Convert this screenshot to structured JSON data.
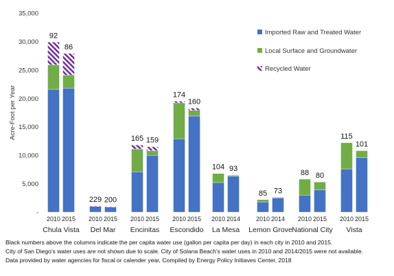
{
  "chart_data": {
    "type": "bar",
    "stacked": true,
    "ylabel": "Acre-Foot per Year",
    "ylim": [
      0,
      35000
    ],
    "ytick_labels": [
      "-",
      "5,000",
      "10,000",
      "15,000",
      "20,000",
      "25,000",
      "30,000",
      "35,000"
    ],
    "cities": [
      "Chula Vista",
      "Del Mar",
      "Encinitas",
      "Escondido",
      "La Mesa",
      "Lemon Grove",
      "National City",
      "Vista"
    ],
    "years": [
      [
        "2010",
        "2015"
      ],
      [
        "2010",
        "2015"
      ],
      [
        "2010",
        "2015"
      ],
      [
        "2010",
        "2015"
      ],
      [
        "2010",
        "2014"
      ],
      [
        "2010",
        "2014"
      ],
      [
        "2010",
        "2015"
      ],
      [
        "2010",
        "2015"
      ]
    ],
    "per_capita_labels": [
      [
        "92",
        "86"
      ],
      [
        "229",
        "200"
      ],
      [
        "165",
        "159"
      ],
      [
        "174",
        "160"
      ],
      [
        "104",
        "93"
      ],
      [
        "85",
        "73"
      ],
      [
        "88",
        "80"
      ],
      [
        "115",
        "101"
      ]
    ],
    "series": [
      {
        "name": "Imported Raw and Treated Water",
        "color": "#4472C4",
        "pattern": "solid",
        "values": [
          [
            21600,
            21800
          ],
          [
            1000,
            900
          ],
          [
            7100,
            10000
          ],
          [
            12900,
            16900
          ],
          [
            5200,
            6300
          ],
          [
            1800,
            2500
          ],
          [
            3000,
            3900
          ],
          [
            7600,
            9600
          ]
        ]
      },
      {
        "name": "Local Surface and Groundwater",
        "color": "#70AD47",
        "pattern": "solid",
        "values": [
          [
            4300,
            2300
          ],
          [
            0,
            0
          ],
          [
            4000,
            800
          ],
          [
            6300,
            1000
          ],
          [
            1600,
            200
          ],
          [
            400,
            100
          ],
          [
            2800,
            1400
          ],
          [
            4600,
            1200
          ]
        ]
      },
      {
        "name": "Recycled Water",
        "color": "#7030A0",
        "pattern": "diagonal-stripes",
        "values": [
          [
            4000,
            3800
          ],
          [
            100,
            100
          ],
          [
            700,
            700
          ],
          [
            300,
            400
          ],
          [
            0,
            0
          ],
          [
            0,
            0
          ],
          [
            0,
            0
          ],
          [
            0,
            0
          ]
        ]
      }
    ],
    "legend_position": "top-right",
    "grid": false
  },
  "footnotes": [
    "Black numbers above the columns indicate the per capita water use (gallon per capita per day) in each city in 2010 and 2015.",
    "City of San Diego's water uses are not shown due to scale. City of Solana Beach's water uses in 2010 and 2014/2015 were not available.",
    "Data provided by water agencies for fiscal or calender year, Compiled by Energy Policy Initiaves Center, 2018"
  ]
}
